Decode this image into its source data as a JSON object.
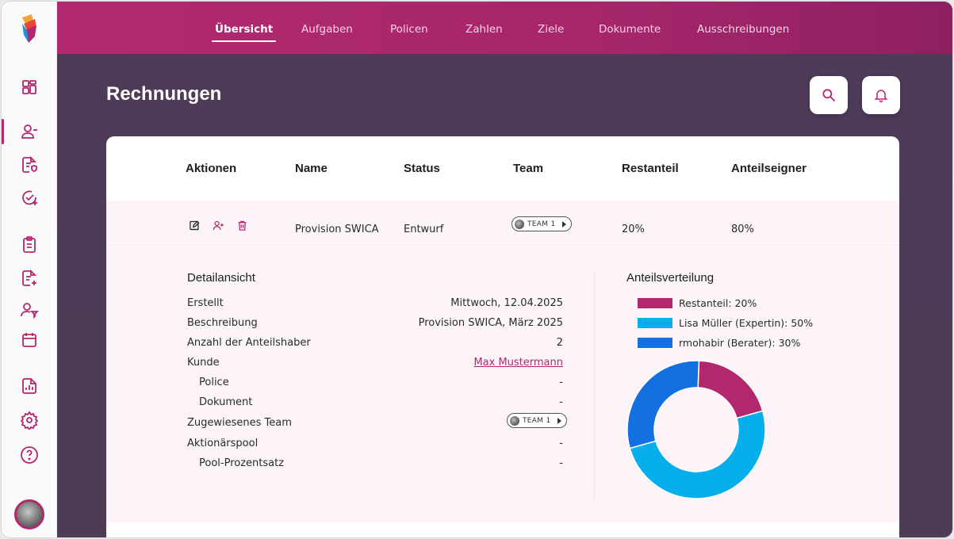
{
  "nav": {
    "tabs": [
      {
        "label": "Übersicht",
        "active": true
      },
      {
        "label": "Aufgaben"
      },
      {
        "label": "Policen"
      },
      {
        "label": "Zahlen"
      },
      {
        "label": "Ziele"
      },
      {
        "label": "Dokumente"
      },
      {
        "label": "Ausschreibungen"
      }
    ]
  },
  "sidebar": {
    "items": [
      {
        "icon": "dashboard-icon"
      },
      {
        "icon": "user-minus-icon",
        "active": true
      },
      {
        "icon": "document-shield-icon"
      },
      {
        "icon": "check-plus-icon"
      },
      {
        "icon": "clipboard-icon"
      },
      {
        "icon": "document-plus-icon"
      },
      {
        "icon": "user-filter-icon"
      },
      {
        "icon": "calendar-icon"
      },
      {
        "icon": "report-chart-icon"
      },
      {
        "icon": "gear-icon"
      },
      {
        "icon": "help-icon"
      }
    ]
  },
  "page": {
    "title": "Rechnungen"
  },
  "table": {
    "headers": [
      "Aktionen",
      "Name",
      "Status",
      "Team",
      "Restanteil",
      "Anteilseigner"
    ],
    "row": {
      "name": "Provision SWICA",
      "status": "Entwurf",
      "team": "TEAM 1",
      "rest": "20%",
      "owners": "80%"
    }
  },
  "detail": {
    "title": "Detailansicht",
    "fields": [
      {
        "label": "Erstellt",
        "value": "Mittwoch, 12.04.2025"
      },
      {
        "label": "Beschreibung",
        "value": "Provision SWICA, März 2025"
      },
      {
        "label": "Anzahl der Anteilshaber",
        "value": "2"
      },
      {
        "label": "Kunde",
        "value": "Max Mustermann"
      },
      {
        "label": "Police",
        "value": "-"
      },
      {
        "label": "Dokument",
        "value": "-"
      },
      {
        "label": "Zugewiesenes Team",
        "value": "TEAM 1"
      },
      {
        "label": "Aktionärspool",
        "value": "-"
      },
      {
        "label": "Pool-Prozentsatz",
        "value": "-"
      }
    ]
  },
  "share": {
    "title": "Anteilsverteilung",
    "legend": [
      {
        "label": "Restanteil: 20%",
        "value": 20,
        "color": "#b2286f"
      },
      {
        "label": "Lisa Müller (Expertin): 50%",
        "value": 50,
        "color": "#06aeeb"
      },
      {
        "label": "rmohabir (Berater): 30%",
        "value": 30,
        "color": "#1470e0"
      }
    ]
  },
  "colors": {
    "brand": "#b2286f",
    "bg": "#4f3a59"
  }
}
